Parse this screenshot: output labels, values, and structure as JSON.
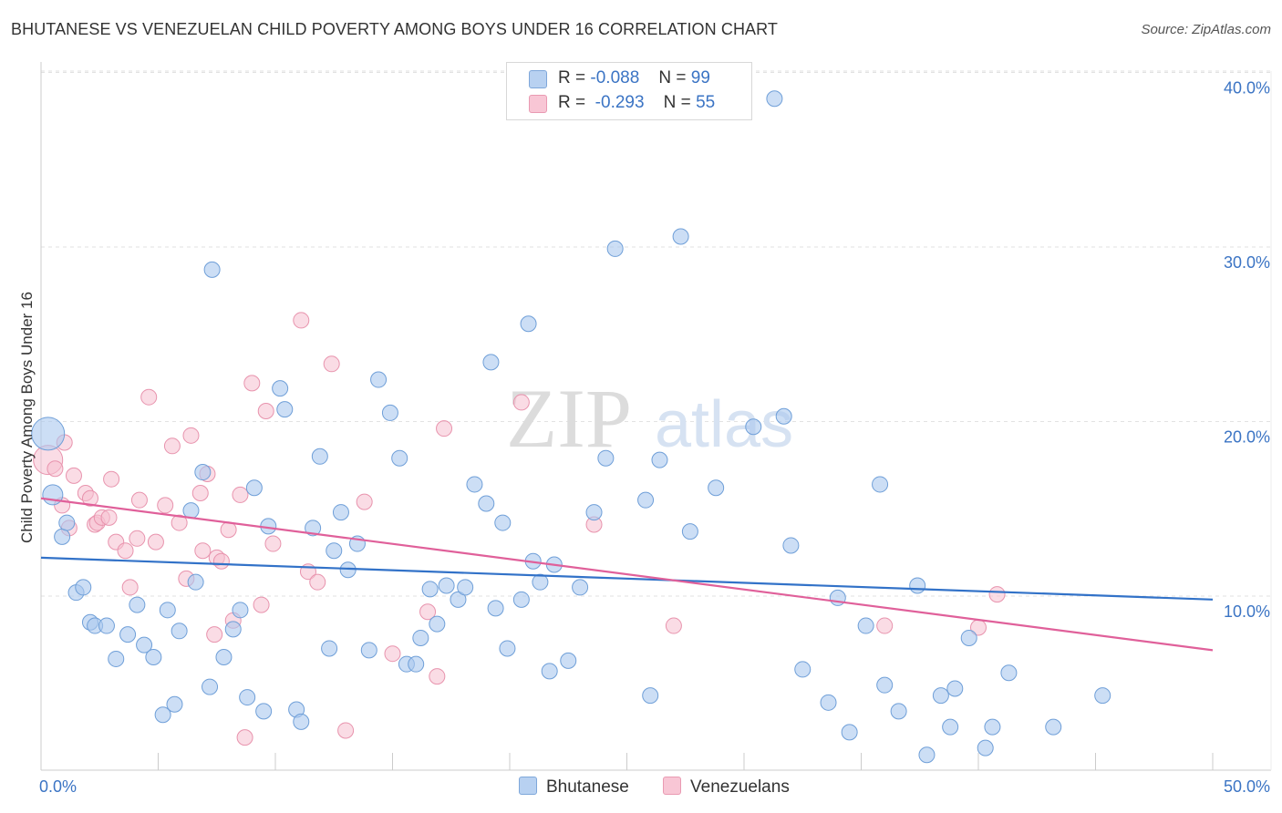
{
  "title": "BHUTANESE VS VENEZUELAN CHILD POVERTY AMONG BOYS UNDER 16 CORRELATION CHART",
  "source": "Source: ZipAtlas.com",
  "watermark": {
    "zip": "ZIP",
    "atlas": "atlas"
  },
  "legend": {
    "rows": [
      {
        "r_label": "R =",
        "r_value": "-0.088",
        "n_label": "N =",
        "n_value": "99"
      },
      {
        "r_label": "R =",
        "r_value": "-0.293",
        "n_label": "N =",
        "n_value": "55"
      }
    ]
  },
  "bottom_legend": {
    "series1": "Bhutanese",
    "series2": "Venezuelans"
  },
  "chart_data": {
    "type": "scatter",
    "title": "BHUTANESE VS VENEZUELAN CHILD POVERTY AMONG BOYS UNDER 16 CORRELATION CHART",
    "xlabel": "",
    "ylabel": "Child Poverty Among Boys Under 16",
    "xlim": [
      0,
      50
    ],
    "ylim": [
      0,
      40
    ],
    "x_ticks": [
      0,
      5,
      10,
      15,
      20,
      25,
      30,
      35,
      40,
      45,
      50
    ],
    "x_tick_labels": {
      "0": "0.0%",
      "50": "50.0%"
    },
    "y_ticks": [
      10,
      20,
      30,
      40
    ],
    "y_tick_labels": [
      "10.0%",
      "20.0%",
      "30.0%",
      "40.0%"
    ],
    "grid": true,
    "colors": {
      "bhutanese_fill": "#aac8ee",
      "bhutanese_stroke": "#6f9fd8",
      "bhutanese_line": "#3272c8",
      "venezuelan_fill": "#f6bfd0",
      "venezuelan_stroke": "#e893ad",
      "venezuelan_line": "#e0609a",
      "tick_label": "#3b74c4"
    },
    "series": [
      {
        "name": "Bhutanese",
        "trend": {
          "x": [
            0,
            50
          ],
          "y": [
            12.2,
            9.8
          ]
        },
        "points": [
          [
            0.3,
            19.3
          ],
          [
            0.5,
            15.8
          ],
          [
            0.9,
            13.4
          ],
          [
            1.1,
            14.2
          ],
          [
            1.5,
            10.2
          ],
          [
            1.8,
            10.5
          ],
          [
            2.1,
            8.5
          ],
          [
            2.3,
            8.3
          ],
          [
            2.8,
            8.3
          ],
          [
            3.2,
            6.4
          ],
          [
            3.7,
            7.8
          ],
          [
            4.1,
            9.5
          ],
          [
            4.4,
            7.2
          ],
          [
            4.8,
            6.5
          ],
          [
            5.2,
            3.2
          ],
          [
            5.4,
            9.2
          ],
          [
            5.7,
            3.8
          ],
          [
            5.9,
            8.0
          ],
          [
            6.4,
            14.9
          ],
          [
            6.6,
            10.8
          ],
          [
            6.9,
            17.1
          ],
          [
            7.2,
            4.8
          ],
          [
            7.3,
            28.7
          ],
          [
            7.8,
            6.5
          ],
          [
            8.2,
            8.1
          ],
          [
            8.5,
            9.2
          ],
          [
            8.8,
            4.2
          ],
          [
            9.1,
            16.2
          ],
          [
            9.5,
            3.4
          ],
          [
            9.7,
            14.0
          ],
          [
            10.2,
            21.9
          ],
          [
            10.4,
            20.7
          ],
          [
            10.9,
            3.5
          ],
          [
            11.1,
            2.8
          ],
          [
            11.6,
            13.9
          ],
          [
            11.9,
            18.0
          ],
          [
            12.3,
            7.0
          ],
          [
            12.5,
            12.6
          ],
          [
            12.8,
            14.8
          ],
          [
            13.1,
            11.5
          ],
          [
            13.5,
            13.0
          ],
          [
            14.0,
            6.9
          ],
          [
            14.4,
            22.4
          ],
          [
            14.9,
            20.5
          ],
          [
            15.3,
            17.9
          ],
          [
            15.6,
            6.1
          ],
          [
            16.0,
            6.1
          ],
          [
            16.2,
            7.6
          ],
          [
            16.6,
            10.4
          ],
          [
            16.9,
            8.4
          ],
          [
            17.3,
            10.6
          ],
          [
            17.8,
            9.8
          ],
          [
            18.1,
            10.5
          ],
          [
            18.5,
            16.4
          ],
          [
            19.0,
            15.3
          ],
          [
            19.2,
            23.4
          ],
          [
            19.4,
            9.3
          ],
          [
            19.7,
            14.2
          ],
          [
            19.9,
            7.0
          ],
          [
            20.5,
            9.8
          ],
          [
            20.8,
            25.6
          ],
          [
            21.0,
            12.0
          ],
          [
            21.3,
            10.8
          ],
          [
            21.7,
            5.7
          ],
          [
            21.9,
            11.8
          ],
          [
            22.5,
            6.3
          ],
          [
            23.0,
            10.5
          ],
          [
            23.6,
            14.8
          ],
          [
            24.1,
            17.9
          ],
          [
            24.5,
            29.9
          ],
          [
            25.8,
            15.5
          ],
          [
            26.0,
            4.3
          ],
          [
            26.4,
            17.8
          ],
          [
            27.3,
            30.6
          ],
          [
            27.7,
            13.7
          ],
          [
            28.8,
            16.2
          ],
          [
            30.4,
            19.7
          ],
          [
            31.3,
            38.5
          ],
          [
            31.7,
            20.3
          ],
          [
            32.0,
            12.9
          ],
          [
            32.5,
            5.8
          ],
          [
            33.6,
            3.9
          ],
          [
            34.0,
            9.9
          ],
          [
            34.5,
            2.2
          ],
          [
            35.2,
            8.3
          ],
          [
            35.8,
            16.4
          ],
          [
            36.0,
            4.9
          ],
          [
            36.6,
            3.4
          ],
          [
            37.4,
            10.6
          ],
          [
            37.8,
            0.9
          ],
          [
            38.4,
            4.3
          ],
          [
            38.8,
            2.5
          ],
          [
            39.0,
            4.7
          ],
          [
            39.6,
            7.6
          ],
          [
            40.3,
            1.3
          ],
          [
            40.6,
            2.5
          ],
          [
            41.3,
            5.6
          ],
          [
            43.2,
            2.5
          ],
          [
            45.3,
            4.3
          ]
        ]
      },
      {
        "name": "Venezuelans",
        "trend": {
          "x": [
            0,
            50
          ],
          "y": [
            15.6,
            6.9
          ]
        },
        "points": [
          [
            0.3,
            17.8
          ],
          [
            0.6,
            17.3
          ],
          [
            0.9,
            15.2
          ],
          [
            1.0,
            18.8
          ],
          [
            1.2,
            13.9
          ],
          [
            1.4,
            16.9
          ],
          [
            1.9,
            15.9
          ],
          [
            2.1,
            15.6
          ],
          [
            2.3,
            14.1
          ],
          [
            2.4,
            14.2
          ],
          [
            2.6,
            14.5
          ],
          [
            2.9,
            14.5
          ],
          [
            3.0,
            16.7
          ],
          [
            3.2,
            13.1
          ],
          [
            3.6,
            12.6
          ],
          [
            3.8,
            10.5
          ],
          [
            4.1,
            13.3
          ],
          [
            4.2,
            15.5
          ],
          [
            4.6,
            21.4
          ],
          [
            4.9,
            13.1
          ],
          [
            5.3,
            15.2
          ],
          [
            5.6,
            18.6
          ],
          [
            5.9,
            14.2
          ],
          [
            6.2,
            11.0
          ],
          [
            6.4,
            19.2
          ],
          [
            6.8,
            15.9
          ],
          [
            6.9,
            12.6
          ],
          [
            7.1,
            17.0
          ],
          [
            7.4,
            7.8
          ],
          [
            7.5,
            12.2
          ],
          [
            7.7,
            12.0
          ],
          [
            8.0,
            13.8
          ],
          [
            8.2,
            8.6
          ],
          [
            8.5,
            15.8
          ],
          [
            8.7,
            1.9
          ],
          [
            9.0,
            22.2
          ],
          [
            9.4,
            9.5
          ],
          [
            9.6,
            20.6
          ],
          [
            9.9,
            13.0
          ],
          [
            11.1,
            25.8
          ],
          [
            11.4,
            11.4
          ],
          [
            11.8,
            10.8
          ],
          [
            12.4,
            23.3
          ],
          [
            13.0,
            2.3
          ],
          [
            13.8,
            15.4
          ],
          [
            15.0,
            6.7
          ],
          [
            16.5,
            9.1
          ],
          [
            16.9,
            5.4
          ],
          [
            17.2,
            19.6
          ],
          [
            20.5,
            21.1
          ],
          [
            23.6,
            14.1
          ],
          [
            27.0,
            8.3
          ],
          [
            36.0,
            8.3
          ],
          [
            40.0,
            8.2
          ],
          [
            40.8,
            10.1
          ]
        ]
      }
    ]
  }
}
